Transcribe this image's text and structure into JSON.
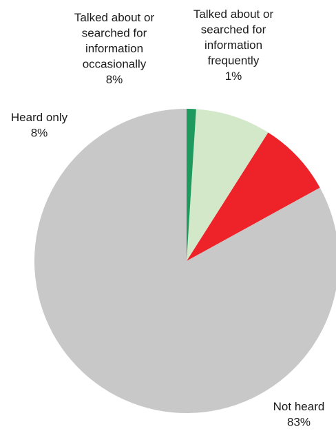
{
  "chart_data": {
    "type": "pie",
    "title": "",
    "start_angle_deg": 0,
    "direction": "counterclockwise",
    "slices": [
      {
        "label": "Not heard",
        "percent_label": "83%",
        "value": 83,
        "color": "#c8c8c8"
      },
      {
        "label": "Heard only",
        "percent_label": "8%",
        "value": 8,
        "color": "#ee2229"
      },
      {
        "label": "Talked about or searched for information occasionally",
        "percent_label": "8%",
        "value": 8,
        "color": "#d3e8c9"
      },
      {
        "label": "Talked about or searched for information frequently",
        "percent_label": "1%",
        "value": 1,
        "color": "#1f9a5f"
      }
    ],
    "label_lines": [
      [
        "Not heard",
        "83%"
      ],
      [
        "Heard only",
        "8%"
      ],
      [
        "Talked about or",
        "searched for",
        "information",
        "occasionally",
        "8%"
      ],
      [
        "Talked about or",
        "searched for",
        "information",
        "frequently",
        "1%"
      ]
    ]
  }
}
